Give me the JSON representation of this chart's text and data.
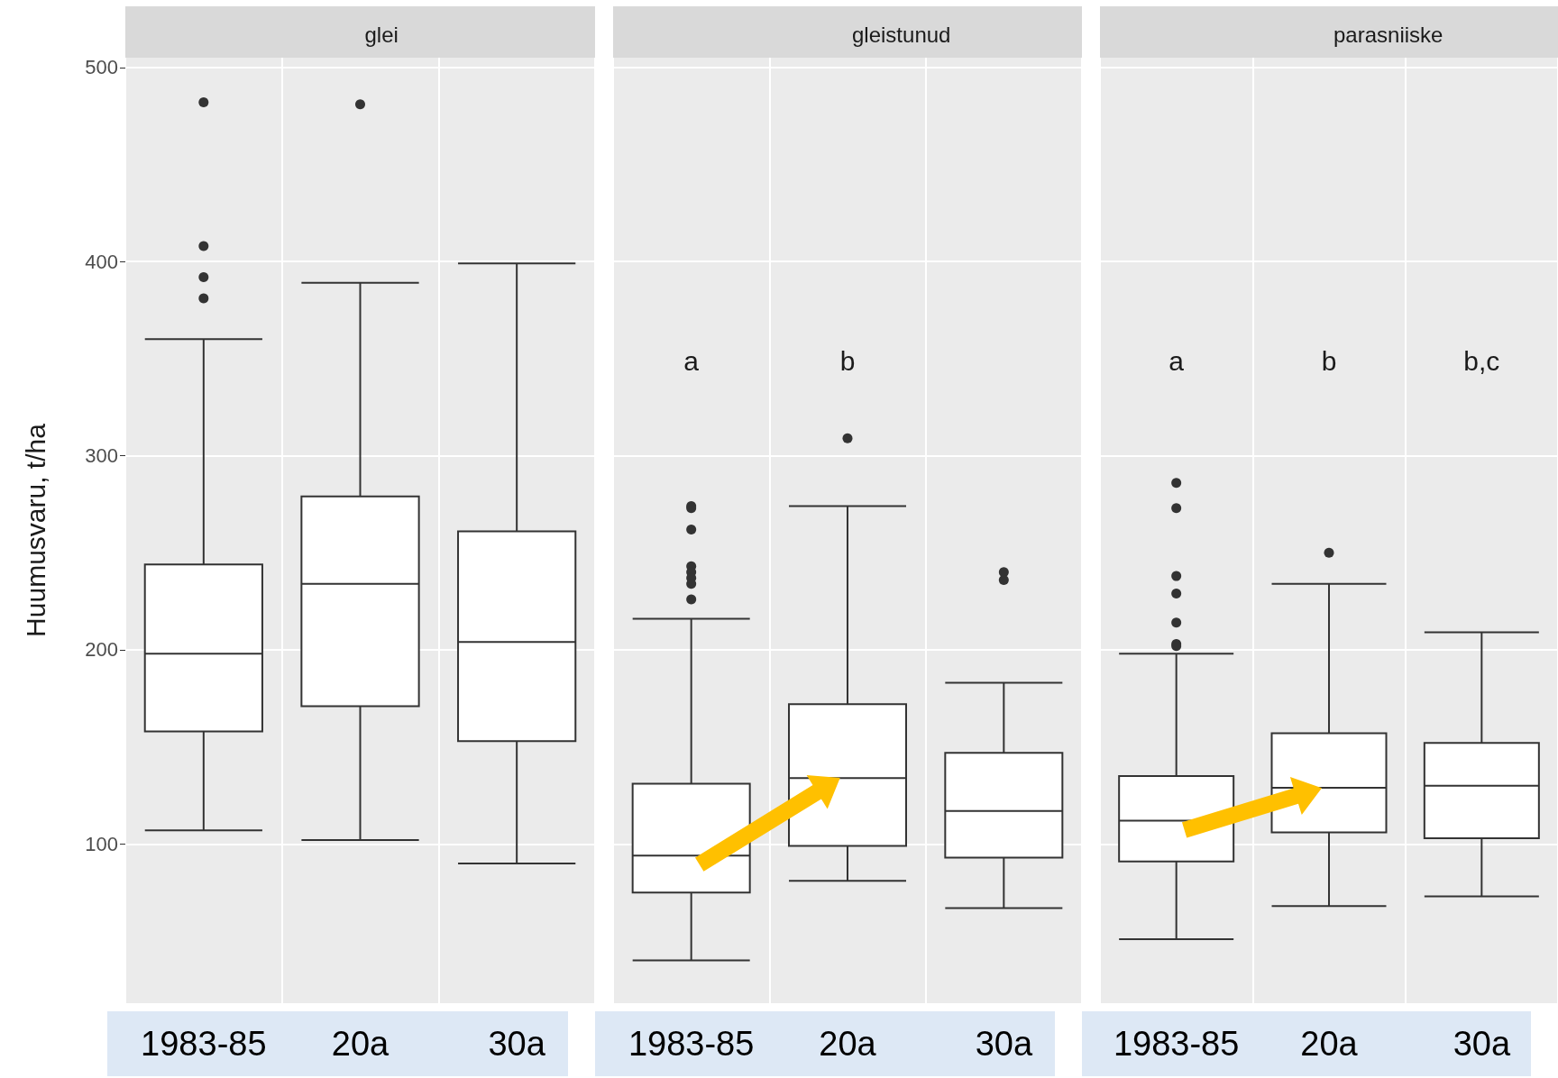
{
  "chart_data": [
    {
      "type": "box",
      "title": "glei",
      "ylabel": "Huumusvaru, t/ha",
      "categories": [
        "1983-85",
        "20a",
        "30a"
      ],
      "ylim": [
        18,
        505
      ],
      "yticks": [
        100,
        200,
        300,
        400,
        500
      ],
      "grid": true,
      "series": [
        {
          "color": "#333333",
          "boxes": [
            {
              "low": 107,
              "q1": 158,
              "median": 198,
              "q3": 244,
              "high": 360,
              "outliers": [
                482,
                408,
                392,
                381
              ]
            },
            {
              "low": 102,
              "q1": 171,
              "median": 234,
              "q3": 279,
              "high": 389,
              "outliers": [
                481
              ]
            },
            {
              "low": 90,
              "q1": 153,
              "median": 204,
              "q3": 261,
              "high": 399
            }
          ]
        }
      ]
    },
    {
      "type": "box",
      "title": "gleistunud",
      "categories": [
        "1983-85",
        "20a",
        "30a"
      ],
      "ylim": [
        18,
        505
      ],
      "yticks": [
        100,
        200,
        300,
        400,
        500
      ],
      "grid": true,
      "tick_labels": "x",
      "series": [
        {
          "color": "#333333",
          "boxes": [
            {
              "low": 40,
              "q1": 75,
              "median": 94,
              "q3": 131,
              "high": 216,
              "outliers": [
                274,
                273,
                262,
                243,
                240,
                237,
                234,
                226
              ]
            },
            {
              "low": 81,
              "q1": 99,
              "median": 134,
              "q3": 172,
              "high": 274,
              "outliers": [
                309
              ]
            },
            {
              "low": 67,
              "q1": 93,
              "median": 117,
              "q3": 147,
              "high": 183,
              "outliers": [
                240,
                236
              ]
            }
          ]
        }
      ],
      "annotations": [
        "a",
        "b"
      ]
    },
    {
      "type": "box",
      "title": "parasniiske",
      "categories": [
        "1983-85",
        "20a",
        "30a"
      ],
      "ylim": [
        18,
        505
      ],
      "yticks": [
        100,
        200,
        300,
        400,
        500
      ],
      "grid": true,
      "tick_labels": "x",
      "series": [
        {
          "color": "#333333",
          "boxes": [
            {
              "low": 51,
              "q1": 91,
              "median": 112,
              "q3": 135,
              "high": 198,
              "outliers": [
                286,
                273,
                238,
                229,
                214,
                203,
                202
              ]
            },
            {
              "low": 68,
              "q1": 106,
              "median": 129,
              "q3": 157,
              "high": 234,
              "outliers": [
                250
              ]
            },
            {
              "low": 73,
              "q1": 103,
              "median": 130,
              "q3": 152,
              "high": 209
            }
          ]
        }
      ],
      "annotations": [
        "a",
        "b",
        "b,c"
      ]
    }
  ]
}
